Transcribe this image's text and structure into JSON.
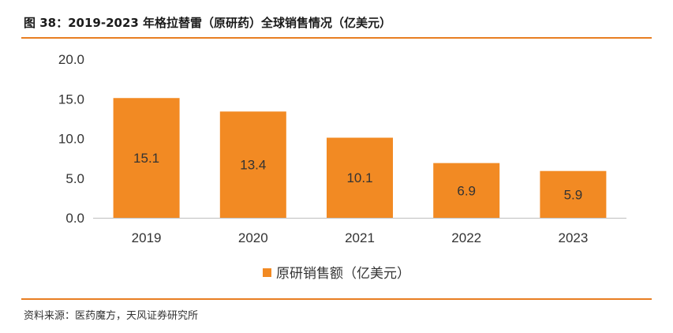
{
  "header": {
    "title": "图 38：2019-2023 年格拉替雷（原研药）全球销售情况（亿美元）"
  },
  "footer": {
    "source": "资料来源：医药魔方，天风证券研究所"
  },
  "colors": {
    "accent": "#e87e22",
    "bar": "#f28a23"
  },
  "chart_data": {
    "type": "bar",
    "title": "",
    "xlabel": "",
    "ylabel": "",
    "categories": [
      "2019",
      "2020",
      "2021",
      "2022",
      "2023"
    ],
    "series": [
      {
        "name": "原研销售额（亿美元）",
        "values": [
          15.1,
          13.4,
          10.1,
          6.9,
          5.9
        ]
      }
    ],
    "data_labels": [
      "15.1",
      "13.4",
      "10.1",
      "6.9",
      "5.9"
    ],
    "y_ticks": [
      "0.0",
      "5.0",
      "10.0",
      "15.0",
      "20.0"
    ],
    "ylim": [
      0,
      20
    ],
    "grid": false,
    "legend_position": "bottom-center"
  }
}
